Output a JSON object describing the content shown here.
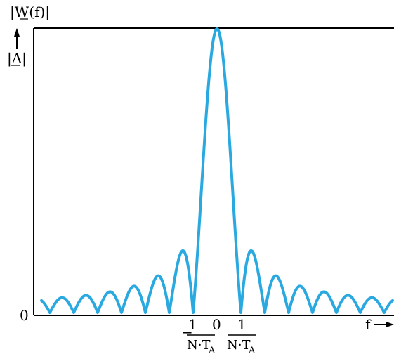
{
  "chart_data": {
    "type": "line",
    "title": "",
    "ylabel_top": "|W(f)|",
    "ylabel_side": "|A|",
    "xlabel": "f",
    "y_zero_label": "0",
    "x_zero_label": "0",
    "tick_numerator": "1",
    "tick_denominator": "N·T",
    "tick_subscript": "A",
    "tick_minus": "−",
    "xlim": [
      -7.4,
      7.4
    ],
    "ylim": [
      0,
      1
    ],
    "main_lobe_zeros": [
      -1,
      1
    ],
    "function": "|sin(pi*N*f*T_A) / (N*sin(pi*f*T_A))| sampled in units of 1/(N*T_A)",
    "color": "#2aa9e0",
    "grid": false,
    "legend": false
  }
}
